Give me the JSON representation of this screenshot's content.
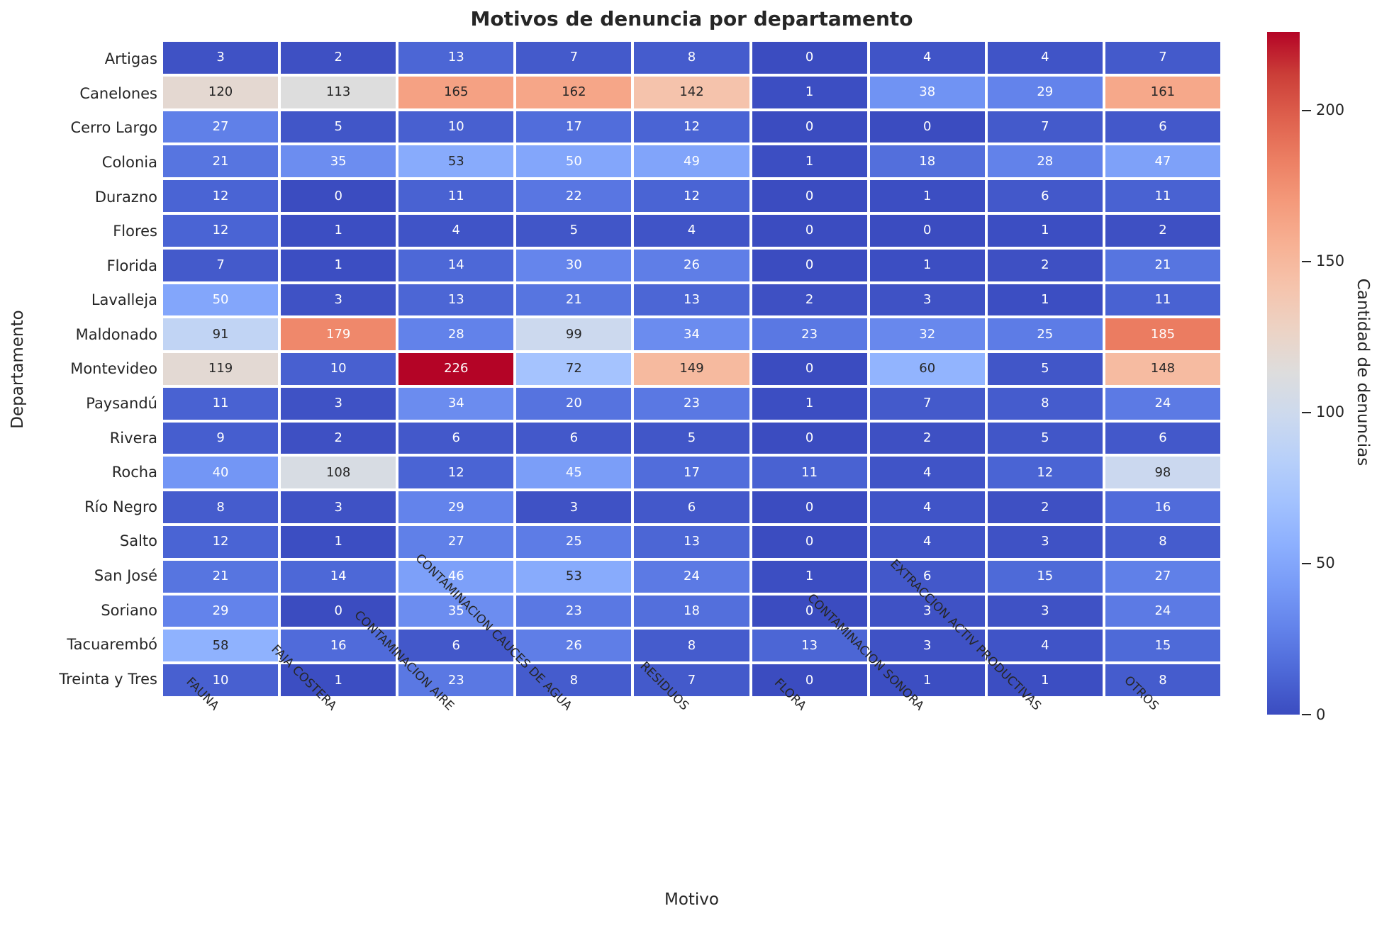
{
  "title": "Motivos de denuncia por departamento",
  "theme": {
    "background": "#ffffff",
    "dark_text": "#262626",
    "light_text": "#ffffff",
    "grid_line_color": "#ffffff"
  },
  "chart_data": {
    "type": "heatmap",
    "title": "Motivos de denuncia por departamento",
    "xlabel": "Motivo",
    "ylabel": "Departamento",
    "colorbar_label": "Cantidad de denuncias",
    "colorbar_ticks": [
      0,
      50,
      100,
      150,
      200
    ],
    "vmin": 0,
    "vmax": 226,
    "colormap": "coolwarm",
    "colormap_anchors": [
      "#3b4cc0",
      "#4d68d7",
      "#6282ea",
      "#779af7",
      "#8db0fe",
      "#a3c2fe",
      "#b8d0f9",
      "#ccd9ee",
      "#dddddd",
      "#ecd3c5",
      "#f5c4ad",
      "#f7b194",
      "#f49a7b",
      "#ec7f63",
      "#de604d",
      "#cb3e38",
      "#b40426"
    ],
    "columns": [
      "FAUNA",
      "FAJA COSTERA",
      "CONTAMINACION AIRE",
      "CONTAMINACION CAUCES DE AGUA",
      "RESIDUOS",
      "FLORA",
      "CONTAMINACION SONORA",
      "EXTRACCION ACTIV PRODUCTIVAS",
      "OTROS"
    ],
    "rows": [
      "Artigas",
      "Canelones",
      "Cerro Largo",
      "Colonia",
      "Durazno",
      "Flores",
      "Florida",
      "Lavalleja",
      "Maldonado",
      "Montevideo",
      "Paysandú",
      "Rivera",
      "Rocha",
      "Río Negro",
      "Salto",
      "San José",
      "Soriano",
      "Tacuarembó",
      "Treinta y Tres"
    ],
    "values": [
      [
        3,
        2,
        13,
        7,
        8,
        0,
        4,
        4,
        7
      ],
      [
        120,
        113,
        165,
        162,
        142,
        1,
        38,
        29,
        161
      ],
      [
        27,
        5,
        10,
        17,
        12,
        0,
        0,
        7,
        6
      ],
      [
        21,
        35,
        53,
        50,
        49,
        1,
        18,
        28,
        47
      ],
      [
        12,
        0,
        11,
        22,
        12,
        0,
        1,
        6,
        11
      ],
      [
        12,
        1,
        4,
        5,
        4,
        0,
        0,
        1,
        2
      ],
      [
        7,
        1,
        14,
        30,
        26,
        0,
        1,
        2,
        21
      ],
      [
        50,
        3,
        13,
        21,
        13,
        2,
        3,
        1,
        11
      ],
      [
        91,
        179,
        28,
        99,
        34,
        23,
        32,
        25,
        185
      ],
      [
        119,
        10,
        226,
        72,
        149,
        0,
        60,
        5,
        148
      ],
      [
        11,
        3,
        34,
        20,
        23,
        1,
        7,
        8,
        24
      ],
      [
        9,
        2,
        6,
        6,
        5,
        0,
        2,
        5,
        6
      ],
      [
        40,
        108,
        12,
        45,
        17,
        11,
        4,
        12,
        98
      ],
      [
        8,
        3,
        29,
        3,
        6,
        0,
        4,
        2,
        16
      ],
      [
        12,
        1,
        27,
        25,
        13,
        0,
        4,
        3,
        8
      ],
      [
        21,
        14,
        46,
        53,
        24,
        1,
        6,
        15,
        27
      ],
      [
        29,
        0,
        35,
        23,
        18,
        0,
        3,
        3,
        24
      ],
      [
        58,
        16,
        6,
        26,
        8,
        13,
        3,
        4,
        15
      ],
      [
        10,
        1,
        23,
        8,
        7,
        0,
        1,
        1,
        8
      ]
    ]
  }
}
